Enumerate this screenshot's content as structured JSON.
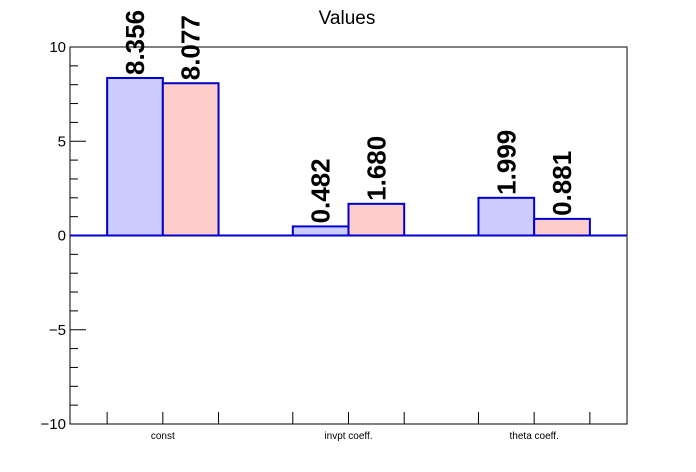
{
  "chart_data": {
    "type": "bar",
    "title": "Values",
    "categories": [
      "const",
      "invpt coeff.",
      "theta coeff."
    ],
    "series": [
      {
        "values": [
          8.356,
          0.482,
          1.999
        ],
        "labels": [
          "8.356",
          "0.482",
          "1.999"
        ],
        "fill": "#ccccff",
        "stroke": "#0000cc"
      },
      {
        "values": [
          8.077,
          1.68,
          0.881
        ],
        "labels": [
          "8.077",
          "1.680",
          "0.881"
        ],
        "fill": "#ffcccc",
        "stroke": "#0000cc"
      }
    ],
    "ylim": [
      -10,
      10
    ],
    "yticks": [
      {
        "value": -10,
        "label": "−10"
      },
      {
        "value": -5,
        "label": "−5"
      },
      {
        "value": 0,
        "label": "0"
      },
      {
        "value": 5,
        "label": "5"
      },
      {
        "value": 10,
        "label": "10"
      }
    ],
    "grid": false,
    "xlabel": "",
    "ylabel": ""
  }
}
